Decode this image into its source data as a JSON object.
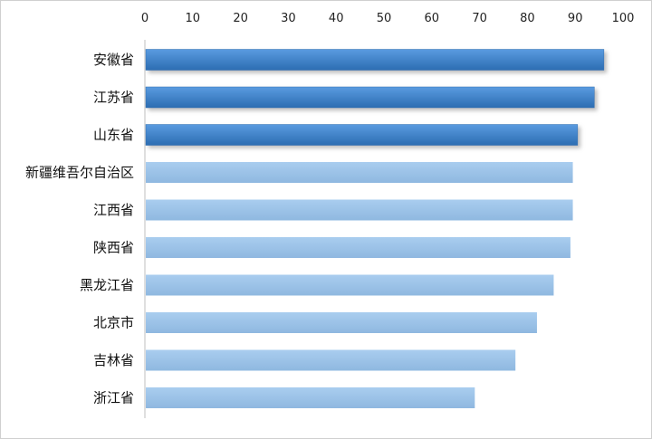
{
  "chart_data": {
    "type": "bar",
    "orientation": "horizontal",
    "title": "",
    "xlabel": "",
    "ylabel": "",
    "xlim": [
      0,
      100
    ],
    "x_ticks": [
      "0",
      "10",
      "20",
      "30",
      "40",
      "50",
      "60",
      "70",
      "80",
      "90",
      "100"
    ],
    "x_axis_position": "top",
    "grid": false,
    "legend": "none",
    "categories": [
      "安徽省",
      "江苏省",
      "山东省",
      "新疆维吾尔自治区",
      "江西省",
      "陕西省",
      "黑龙江省",
      "北京市",
      "吉林省",
      "浙江省"
    ],
    "values": [
      96,
      94,
      90.5,
      89.5,
      89.5,
      89,
      85.5,
      82,
      77.5,
      69
    ],
    "highlighted_count": 3,
    "colors": {
      "highlight_bar": "#3f85cc",
      "highlight_bar_dark": "#2f6fb0",
      "normal_bar": "#9dc3e6",
      "shadow": "#b8b8b8"
    }
  }
}
